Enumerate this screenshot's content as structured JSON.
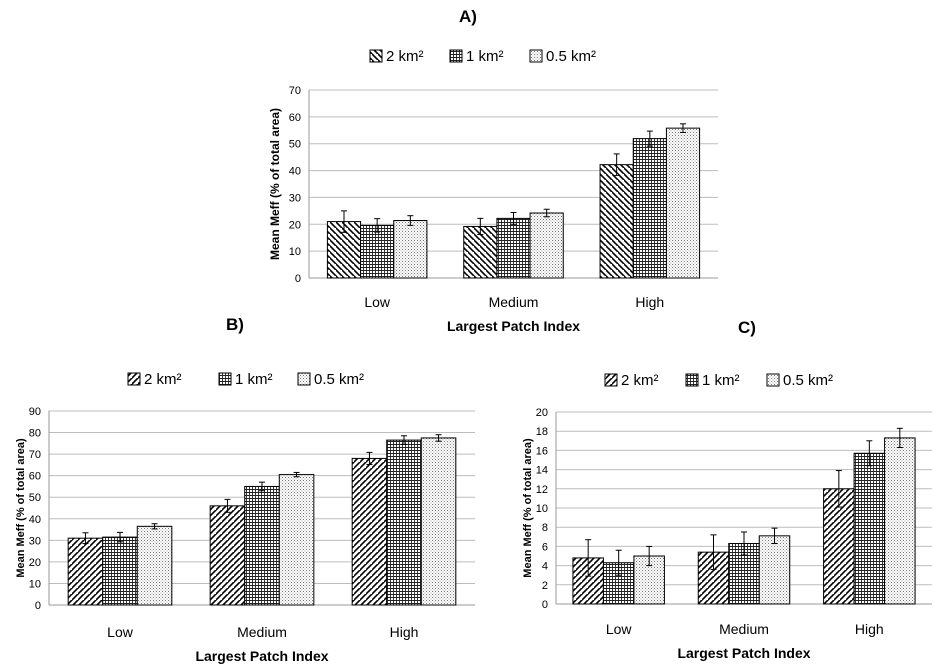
{
  "chart_data": [
    {
      "panel_label": "A)",
      "type": "bar",
      "ylabel": "Mean Meff (% of total area)",
      "xlabel": "Largest Patch Index",
      "categories": [
        "Low",
        "Medium",
        "High"
      ],
      "ylim": [
        0,
        70
      ],
      "yticks": [
        0,
        10,
        20,
        30,
        40,
        50,
        60,
        70
      ],
      "grid": true,
      "legend_position": "top",
      "series": [
        {
          "name": "2 km²",
          "pattern": "diagonal-hatch-back",
          "values": [
            21.0,
            19.2,
            42.2
          ],
          "errors": [
            4.0,
            3.0,
            4.0
          ]
        },
        {
          "name": "1 km²",
          "pattern": "grid",
          "values": [
            19.6,
            22.2,
            51.9
          ],
          "errors": [
            2.5,
            2.2,
            2.8
          ]
        },
        {
          "name": "0.5 km²",
          "pattern": "dots",
          "values": [
            21.4,
            24.2,
            55.8
          ],
          "errors": [
            1.8,
            1.4,
            1.6
          ]
        }
      ]
    },
    {
      "panel_label": "B)",
      "type": "bar",
      "ylabel": "Mean Meff (% of total area)",
      "xlabel": "Largest Patch Index",
      "categories": [
        "Low",
        "Medium",
        "High"
      ],
      "ylim": [
        0,
        90
      ],
      "yticks": [
        0,
        10,
        20,
        30,
        40,
        50,
        60,
        70,
        80,
        90
      ],
      "grid": true,
      "legend_position": "top",
      "series": [
        {
          "name": "2 km²",
          "pattern": "diagonal-hatch-forward",
          "values": [
            31.0,
            46.0,
            68.0
          ],
          "errors": [
            2.5,
            3.0,
            2.8
          ]
        },
        {
          "name": "1 km²",
          "pattern": "grid",
          "values": [
            31.5,
            55.0,
            76.5
          ],
          "errors": [
            2.2,
            2.0,
            2.0
          ]
        },
        {
          "name": "0.5 km²",
          "pattern": "dots",
          "values": [
            36.5,
            60.5,
            77.5
          ],
          "errors": [
            1.2,
            1.0,
            1.5
          ]
        }
      ]
    },
    {
      "panel_label": "C)",
      "type": "bar",
      "ylabel": "Mean Meff (% of total area)",
      "xlabel": "Largest Patch Index",
      "categories": [
        "Low",
        "Medium",
        "High"
      ],
      "ylim": [
        0,
        20
      ],
      "yticks": [
        0,
        2,
        4,
        6,
        8,
        10,
        12,
        14,
        16,
        18,
        20
      ],
      "grid": true,
      "legend_position": "top",
      "series": [
        {
          "name": "2 km²",
          "pattern": "diagonal-hatch-forward",
          "values": [
            4.8,
            5.4,
            12.0
          ],
          "errors": [
            1.9,
            1.8,
            1.9
          ]
        },
        {
          "name": "1 km²",
          "pattern": "grid",
          "values": [
            4.3,
            6.3,
            15.7
          ],
          "errors": [
            1.3,
            1.2,
            1.3
          ]
        },
        {
          "name": "0.5 km²",
          "pattern": "dots",
          "values": [
            5.0,
            7.1,
            17.3
          ],
          "errors": [
            1.0,
            0.8,
            1.0
          ]
        }
      ]
    }
  ]
}
